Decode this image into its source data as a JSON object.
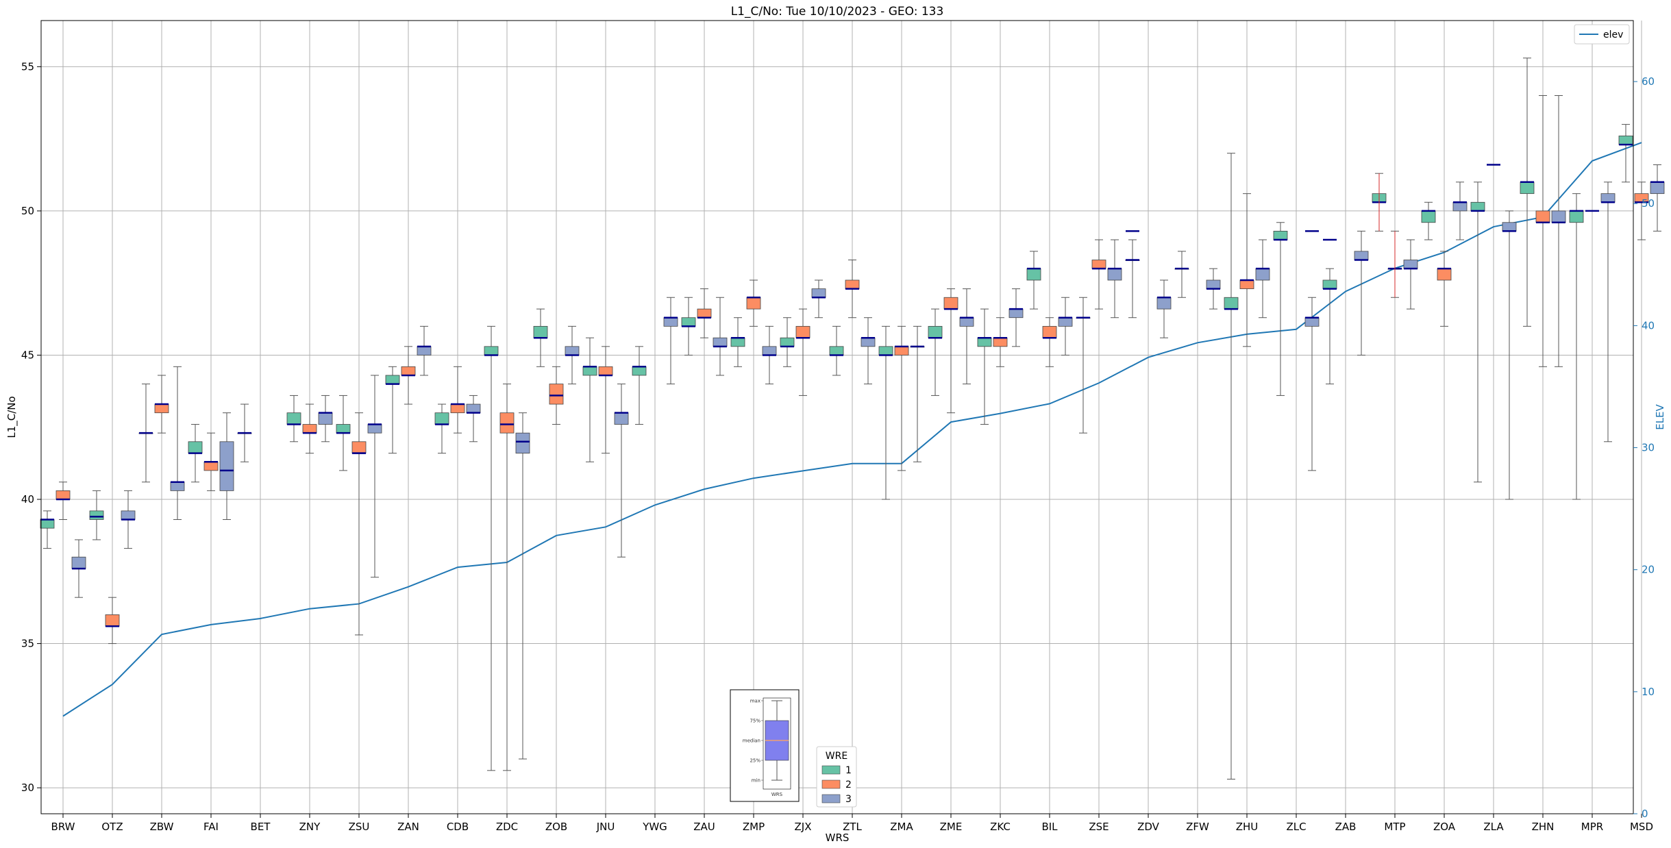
{
  "chart_data": {
    "type": "box",
    "title": "L1_C/No: Tue 10/10/2023 - GEO: 133",
    "xlabel": "WRS",
    "ylabel": "L1_C/No",
    "ylabel_right": "ELEV",
    "ylim": [
      29.1,
      56.6
    ],
    "ylim_right": [
      0,
      65
    ],
    "yticks": [
      30,
      35,
      40,
      45,
      50,
      55
    ],
    "yticks_right": [
      0,
      10,
      20,
      30,
      40,
      50,
      60
    ],
    "grid": true,
    "colors": {
      "1": "#66c2a5",
      "2": "#fc8d62",
      "3": "#8da0cb",
      "elev": "#1f77b4",
      "median": "#00008b",
      "outlier_whisker": "#d62728"
    },
    "categories": [
      "BRW",
      "OTZ",
      "ZBW",
      "FAI",
      "BET",
      "ZNY",
      "ZSU",
      "ZAN",
      "CDB",
      "ZDC",
      "ZOB",
      "JNU",
      "YWG",
      "ZAU",
      "ZMP",
      "ZJX",
      "ZTL",
      "ZMA",
      "ZME",
      "ZKC",
      "BIL",
      "ZSE",
      "ZDV",
      "ZFW",
      "ZHU",
      "ZLC",
      "ZAB",
      "MTP",
      "ZOA",
      "ZLA",
      "ZHN",
      "MPR",
      "MSD"
    ],
    "series": [
      {
        "name": "1",
        "boxes": [
          {
            "cat": "BRW",
            "min": 38.3,
            "q1": 39.0,
            "median": 39.3,
            "q3": 39.3,
            "max": 39.6
          },
          {
            "cat": "OTZ",
            "min": 38.6,
            "q1": 39.3,
            "median": 39.4,
            "q3": 39.6,
            "max": 40.3
          },
          {
            "cat": "ZBW",
            "min": 40.6,
            "q1": 42.3,
            "median": 42.3,
            "q3": 42.3,
            "max": 44.0
          },
          {
            "cat": "FAI",
            "min": 40.6,
            "q1": 41.6,
            "median": 41.6,
            "q3": 42.0,
            "max": 42.6
          },
          {
            "cat": "BET",
            "min": 41.3,
            "q1": 42.3,
            "median": 42.3,
            "q3": 42.3,
            "max": 43.3
          },
          {
            "cat": "ZNY",
            "min": 42.0,
            "q1": 42.6,
            "median": 42.6,
            "q3": 43.0,
            "max": 43.6
          },
          {
            "cat": "ZSU",
            "min": 41.0,
            "q1": 42.3,
            "median": 42.3,
            "q3": 42.6,
            "max": 43.6
          },
          {
            "cat": "ZAN",
            "min": 41.6,
            "q1": 44.0,
            "median": 44.0,
            "q3": 44.3,
            "max": 44.6
          },
          {
            "cat": "CDB",
            "min": 41.6,
            "q1": 42.6,
            "median": 42.6,
            "q3": 43.0,
            "max": 43.3
          },
          {
            "cat": "ZDC",
            "min": 30.6,
            "q1": 45.0,
            "median": 45.0,
            "q3": 45.3,
            "max": 46.0
          },
          {
            "cat": "ZOB",
            "min": 44.6,
            "q1": 45.6,
            "median": 45.6,
            "q3": 46.0,
            "max": 46.6
          },
          {
            "cat": "JNU",
            "min": 41.3,
            "q1": 44.3,
            "median": 44.6,
            "q3": 44.6,
            "max": 45.6
          },
          {
            "cat": "YWG",
            "min": 42.6,
            "q1": 44.3,
            "median": 44.6,
            "q3": 44.6,
            "max": 45.3
          },
          {
            "cat": "ZAU",
            "min": 45.0,
            "q1": 46.0,
            "median": 46.0,
            "q3": 46.3,
            "max": 47.0
          },
          {
            "cat": "ZMP",
            "min": 44.6,
            "q1": 45.3,
            "median": 45.6,
            "q3": 45.6,
            "max": 46.3
          },
          {
            "cat": "ZJX",
            "min": 44.6,
            "q1": 45.3,
            "median": 45.3,
            "q3": 45.6,
            "max": 46.3
          },
          {
            "cat": "ZTL",
            "min": 44.3,
            "q1": 45.0,
            "median": 45.0,
            "q3": 45.3,
            "max": 46.0
          },
          {
            "cat": "ZMA",
            "min": 40.0,
            "q1": 45.0,
            "median": 45.0,
            "q3": 45.3,
            "max": 46.0
          },
          {
            "cat": "ZME",
            "min": 43.6,
            "q1": 45.6,
            "median": 45.6,
            "q3": 46.0,
            "max": 46.6
          },
          {
            "cat": "ZKC",
            "min": 42.6,
            "q1": 45.3,
            "median": 45.6,
            "q3": 45.6,
            "max": 46.6
          },
          {
            "cat": "BIL",
            "min": 46.6,
            "q1": 47.6,
            "median": 48.0,
            "q3": 48.0,
            "max": 48.6
          },
          {
            "cat": "ZSE",
            "min": 42.3,
            "q1": 46.3,
            "median": 46.3,
            "q3": 46.3,
            "max": 47.0
          },
          {
            "cat": "ZDV",
            "min": 46.3,
            "q1": 48.3,
            "median": 48.3,
            "q3": 48.3,
            "max": 49.0
          },
          {
            "cat": "ZFW",
            "min": 47.0,
            "q1": 48.0,
            "median": 48.0,
            "q3": 48.0,
            "max": 48.6
          },
          {
            "cat": "ZHU",
            "min": 30.3,
            "q1": 46.6,
            "median": 46.6,
            "q3": 47.0,
            "max": 52.0
          },
          {
            "cat": "ZLC",
            "min": 43.6,
            "q1": 49.0,
            "median": 49.0,
            "q3": 49.3,
            "max": 49.6
          },
          {
            "cat": "ZAB",
            "min": 44.0,
            "q1": 47.3,
            "median": 47.3,
            "q3": 47.6,
            "max": 48.0
          },
          {
            "cat": "MTP",
            "min": 49.3,
            "q1": 50.3,
            "median": 50.3,
            "q3": 50.6,
            "max": 51.3
          },
          {
            "cat": "ZOA",
            "min": 49.0,
            "q1": 49.6,
            "median": 50.0,
            "q3": 50.0,
            "max": 50.3
          },
          {
            "cat": "ZLA",
            "min": 40.6,
            "q1": 50.0,
            "median": 50.0,
            "q3": 50.3,
            "max": 51.0
          },
          {
            "cat": "ZHN",
            "min": 46.0,
            "q1": 50.6,
            "median": 51.0,
            "q3": 51.0,
            "max": 55.3
          },
          {
            "cat": "MPR",
            "min": 40.0,
            "q1": 49.6,
            "median": 50.0,
            "q3": 50.0,
            "max": 50.6
          },
          {
            "cat": "MSD",
            "min": 51.0,
            "q1": 52.3,
            "median": 52.3,
            "q3": 52.6,
            "max": 53.0
          }
        ]
      },
      {
        "name": "2",
        "boxes": [
          {
            "cat": "BRW",
            "min": 39.3,
            "q1": 40.0,
            "median": 40.0,
            "q3": 40.3,
            "max": 40.6
          },
          {
            "cat": "OTZ",
            "min": 35.0,
            "q1": 35.6,
            "median": 35.6,
            "q3": 36.0,
            "max": 36.6
          },
          {
            "cat": "ZBW",
            "min": 42.3,
            "q1": 43.0,
            "median": 43.3,
            "q3": 43.3,
            "max": 44.3
          },
          {
            "cat": "FAI",
            "min": 40.3,
            "q1": 41.0,
            "median": 41.3,
            "q3": 41.3,
            "max": 42.3
          },
          {
            "cat": "ZNY",
            "min": 41.6,
            "q1": 42.3,
            "median": 42.3,
            "q3": 42.6,
            "max": 43.3
          },
          {
            "cat": "ZSU",
            "min": 35.3,
            "q1": 41.6,
            "median": 41.6,
            "q3": 42.0,
            "max": 43.0
          },
          {
            "cat": "ZAN",
            "min": 43.3,
            "q1": 44.3,
            "median": 44.3,
            "q3": 44.6,
            "max": 45.3
          },
          {
            "cat": "CDB",
            "min": 42.3,
            "q1": 43.0,
            "median": 43.3,
            "q3": 43.3,
            "max": 44.6
          },
          {
            "cat": "ZDC",
            "min": 30.6,
            "q1": 42.3,
            "median": 42.6,
            "q3": 43.0,
            "max": 44.0
          },
          {
            "cat": "ZOB",
            "min": 42.6,
            "q1": 43.3,
            "median": 43.6,
            "q3": 44.0,
            "max": 44.6
          },
          {
            "cat": "JNU",
            "min": 41.6,
            "q1": 44.3,
            "median": 44.3,
            "q3": 44.6,
            "max": 45.3
          },
          {
            "cat": "ZAU",
            "min": 45.6,
            "q1": 46.3,
            "median": 46.3,
            "q3": 46.6,
            "max": 47.3
          },
          {
            "cat": "ZMP",
            "min": 46.0,
            "q1": 46.6,
            "median": 47.0,
            "q3": 47.0,
            "max": 47.6
          },
          {
            "cat": "ZJX",
            "min": 43.6,
            "q1": 45.6,
            "median": 45.6,
            "q3": 46.0,
            "max": 46.6
          },
          {
            "cat": "ZTL",
            "min": 46.3,
            "q1": 47.3,
            "median": 47.3,
            "q3": 47.6,
            "max": 48.3
          },
          {
            "cat": "ZMA",
            "min": 41.0,
            "q1": 45.0,
            "median": 45.3,
            "q3": 45.3,
            "max": 46.0
          },
          {
            "cat": "ZME",
            "min": 43.0,
            "q1": 46.6,
            "median": 46.6,
            "q3": 47.0,
            "max": 47.3
          },
          {
            "cat": "ZKC",
            "min": 44.6,
            "q1": 45.3,
            "median": 45.6,
            "q3": 45.6,
            "max": 46.3
          },
          {
            "cat": "BIL",
            "min": 44.6,
            "q1": 45.6,
            "median": 45.6,
            "q3": 46.0,
            "max": 46.3
          },
          {
            "cat": "ZSE",
            "min": 46.6,
            "q1": 48.0,
            "median": 48.0,
            "q3": 48.3,
            "max": 49.0
          },
          {
            "cat": "ZHU",
            "min": 45.3,
            "q1": 47.3,
            "median": 47.6,
            "q3": 47.6,
            "max": 50.6
          },
          {
            "cat": "MTP",
            "min": 47.0,
            "q1": 48.0,
            "median": 48.0,
            "q3": 48.0,
            "max": 49.3
          },
          {
            "cat": "ZOA",
            "min": 46.0,
            "q1": 47.6,
            "median": 48.0,
            "q3": 48.0,
            "max": 48.6
          },
          {
            "cat": "ZHN",
            "min": 44.6,
            "q1": 49.6,
            "median": 49.6,
            "q3": 50.0,
            "max": 54.0
          },
          {
            "cat": "MSD",
            "min": 49.0,
            "q1": 50.3,
            "median": 50.3,
            "q3": 50.6,
            "max": 51.0
          }
        ]
      },
      {
        "name": "3",
        "boxes": [
          {
            "cat": "BRW",
            "min": 36.6,
            "q1": 37.6,
            "median": 37.6,
            "q3": 38.0,
            "max": 38.6
          },
          {
            "cat": "OTZ",
            "min": 38.3,
            "q1": 39.3,
            "median": 39.3,
            "q3": 39.6,
            "max": 40.3
          },
          {
            "cat": "ZBW",
            "min": 39.3,
            "q1": 40.3,
            "median": 40.6,
            "q3": 40.6,
            "max": 44.6
          },
          {
            "cat": "FAI",
            "min": 39.3,
            "q1": 40.3,
            "median": 41.0,
            "q3": 42.0,
            "max": 43.0
          },
          {
            "cat": "ZNY",
            "min": 42.0,
            "q1": 42.6,
            "median": 43.0,
            "q3": 43.0,
            "max": 43.6
          },
          {
            "cat": "ZSU",
            "min": 37.3,
            "q1": 42.3,
            "median": 42.6,
            "q3": 42.6,
            "max": 44.3
          },
          {
            "cat": "ZAN",
            "min": 44.3,
            "q1": 45.0,
            "median": 45.3,
            "q3": 45.3,
            "max": 46.0
          },
          {
            "cat": "CDB",
            "min": 42.0,
            "q1": 43.0,
            "median": 43.0,
            "q3": 43.3,
            "max": 43.6
          },
          {
            "cat": "ZDC",
            "min": 31.0,
            "q1": 41.6,
            "median": 42.0,
            "q3": 42.3,
            "max": 43.0
          },
          {
            "cat": "ZOB",
            "min": 44.0,
            "q1": 45.0,
            "median": 45.0,
            "q3": 45.3,
            "max": 46.0
          },
          {
            "cat": "JNU",
            "min": 38.0,
            "q1": 42.6,
            "median": 43.0,
            "q3": 43.0,
            "max": 44.0
          },
          {
            "cat": "YWG",
            "min": 44.0,
            "q1": 46.0,
            "median": 46.3,
            "q3": 46.3,
            "max": 47.0
          },
          {
            "cat": "ZAU",
            "min": 44.3,
            "q1": 45.3,
            "median": 45.3,
            "q3": 45.6,
            "max": 47.0
          },
          {
            "cat": "ZMP",
            "min": 44.0,
            "q1": 45.0,
            "median": 45.0,
            "q3": 45.3,
            "max": 46.0
          },
          {
            "cat": "ZJX",
            "min": 46.3,
            "q1": 47.0,
            "median": 47.0,
            "q3": 47.3,
            "max": 47.6
          },
          {
            "cat": "ZTL",
            "min": 44.0,
            "q1": 45.3,
            "median": 45.6,
            "q3": 45.6,
            "max": 46.3
          },
          {
            "cat": "ZMA",
            "min": 41.3,
            "q1": 45.3,
            "median": 45.3,
            "q3": 45.3,
            "max": 46.0
          },
          {
            "cat": "ZME",
            "min": 44.0,
            "q1": 46.0,
            "median": 46.3,
            "q3": 46.3,
            "max": 47.3
          },
          {
            "cat": "ZKC",
            "min": 45.3,
            "q1": 46.3,
            "median": 46.6,
            "q3": 46.6,
            "max": 47.3
          },
          {
            "cat": "BIL",
            "min": 45.0,
            "q1": 46.0,
            "median": 46.3,
            "q3": 46.3,
            "max": 47.0
          },
          {
            "cat": "ZSE",
            "min": 46.3,
            "q1": 47.6,
            "median": 48.0,
            "q3": 48.0,
            "max": 49.0
          },
          {
            "cat": "ZDV",
            "min": 45.6,
            "q1": 46.6,
            "median": 47.0,
            "q3": 47.0,
            "max": 47.6
          },
          {
            "cat": "ZFW",
            "min": 46.6,
            "q1": 47.3,
            "median": 47.3,
            "q3": 47.6,
            "max": 48.0
          },
          {
            "cat": "ZHU",
            "min": 46.3,
            "q1": 47.6,
            "median": 48.0,
            "q3": 48.0,
            "max": 49.0
          },
          {
            "cat": "ZLC",
            "min": 41.0,
            "q1": 46.0,
            "median": 46.3,
            "q3": 46.3,
            "max": 47.0
          },
          {
            "cat": "ZAB",
            "min": 45.0,
            "q1": 48.3,
            "median": 48.3,
            "q3": 48.6,
            "max": 49.3
          },
          {
            "cat": "MTP",
            "min": 46.6,
            "q1": 48.0,
            "median": 48.0,
            "q3": 48.3,
            "max": 49.0
          },
          {
            "cat": "ZOA",
            "min": 49.0,
            "q1": 50.0,
            "median": 50.3,
            "q3": 50.3,
            "max": 51.0
          },
          {
            "cat": "ZLA",
            "min": 40.0,
            "q1": 49.3,
            "median": 49.3,
            "q3": 49.6,
            "max": 50.0
          },
          {
            "cat": "ZHN",
            "min": 44.6,
            "q1": 49.6,
            "median": 49.6,
            "q3": 50.0,
            "max": 54.0
          },
          {
            "cat": "MPR",
            "min": 42.0,
            "q1": 50.3,
            "median": 50.3,
            "q3": 50.6,
            "max": 51.0
          },
          {
            "cat": "MSD",
            "min": 49.3,
            "q1": 50.6,
            "median": 51.0,
            "q3": 51.0,
            "max": 51.6
          }
        ]
      }
    ],
    "single_markers": [
      {
        "cat": "ZSU",
        "series": "2",
        "value": 41.6
      },
      {
        "cat": "ZDV",
        "series": "1",
        "value": 49.3
      },
      {
        "cat": "ZLC",
        "series": "3",
        "value": 49.3
      },
      {
        "cat": "ZAB",
        "series": "1",
        "value": 49.0
      },
      {
        "cat": "ZLA",
        "series": "2",
        "value": 51.6
      },
      {
        "cat": "MPR",
        "series": "2",
        "value": 50.0
      }
    ],
    "elev": {
      "name": "elev",
      "values": [
        8.0,
        10.6,
        14.7,
        15.5,
        16.0,
        16.8,
        17.2,
        18.6,
        20.2,
        20.6,
        22.8,
        23.5,
        25.3,
        26.6,
        27.5,
        28.1,
        28.7,
        28.7,
        32.1,
        32.8,
        33.6,
        35.3,
        37.4,
        38.6,
        39.3,
        39.7,
        42.8,
        44.7,
        46.0,
        48.1,
        48.9,
        53.5,
        55.0
      ]
    },
    "legend": {
      "title": "WRE",
      "entries": [
        "1",
        "2",
        "3"
      ],
      "position": "bottom-center"
    },
    "legend_elev": {
      "entries": [
        "elev"
      ],
      "position": "top-right"
    },
    "inset_key": {
      "labels": [
        "max",
        "75%",
        "median",
        "25%",
        "min"
      ],
      "xlabel": "WRS",
      "position": "bottom-center"
    }
  }
}
